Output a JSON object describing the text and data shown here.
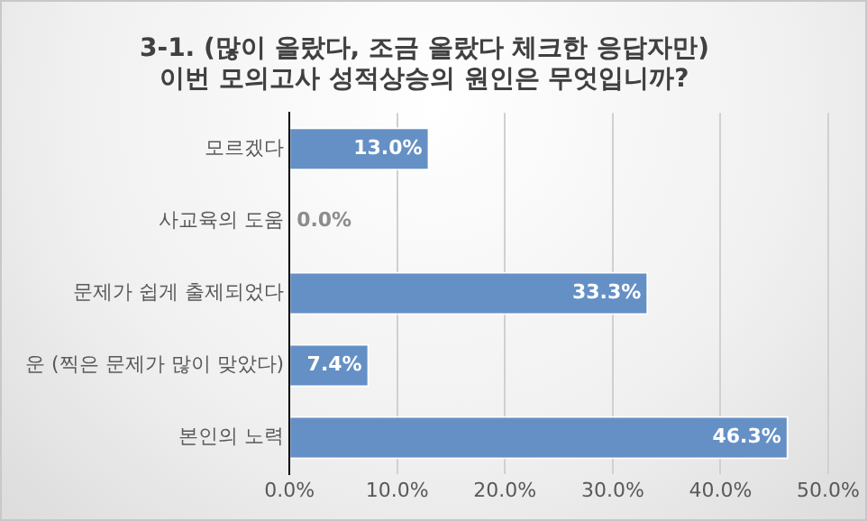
{
  "chart_data": {
    "type": "bar",
    "orientation": "horizontal",
    "title": "3-1. (많이 올랐다, 조금 올랐다 체크한 응답자만)\n이번 모의고사 성적상승의 원인은 무엇입니까?",
    "categories": [
      "모르겠다",
      "사교육의 도움",
      "문제가 쉽게 출제되었다",
      "운 (찍은 문제가 많이 맞았다)",
      "본인의 노력"
    ],
    "values": [
      13.0,
      0.0,
      33.3,
      7.4,
      46.3
    ],
    "value_labels": [
      "13.0%",
      "0.0%",
      "33.3%",
      "7.4%",
      "46.3%"
    ],
    "color": "#6590c5",
    "xlim": [
      0,
      50
    ],
    "xticks": [
      {
        "value": 0,
        "label": "0.0%"
      },
      {
        "value": 10,
        "label": "10.0%"
      },
      {
        "value": 20,
        "label": "20.0%"
      },
      {
        "value": 30,
        "label": "30.0%"
      },
      {
        "value": 40,
        "label": "40.0%"
      },
      {
        "value": 50,
        "label": "50.0%"
      }
    ],
    "grid": "x",
    "legend": false
  }
}
